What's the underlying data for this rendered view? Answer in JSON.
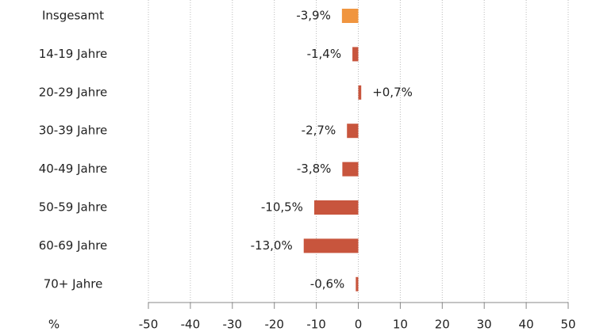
{
  "chart_data": {
    "type": "hbar",
    "categories": [
      "Insgesamt",
      "14-19 Jahre",
      "20-29 Jahre",
      "30-39 Jahre",
      "40-49 Jahre",
      "50-59 Jahre",
      "60-69 Jahre",
      "70+ Jahre"
    ],
    "values": [
      -3.9,
      -1.4,
      0.7,
      -2.7,
      -3.8,
      -10.5,
      -13.0,
      -0.6
    ],
    "value_labels": [
      "-3,9%",
      "-1,4%",
      "+0,7%",
      "-2,7%",
      "-3,8%",
      "-10,5%",
      "-13,0%",
      "-0,6%"
    ],
    "colors": [
      "#f0953f",
      "#c8553d",
      "#c8553d",
      "#c8553d",
      "#c8553d",
      "#c8553d",
      "#c8553d",
      "#c8553d"
    ],
    "xlabel": "%",
    "xlim": [
      -50,
      50
    ],
    "xticks": [
      -50,
      -40,
      -30,
      -20,
      -10,
      0,
      10,
      20,
      30,
      40,
      50
    ],
    "grid": true
  }
}
